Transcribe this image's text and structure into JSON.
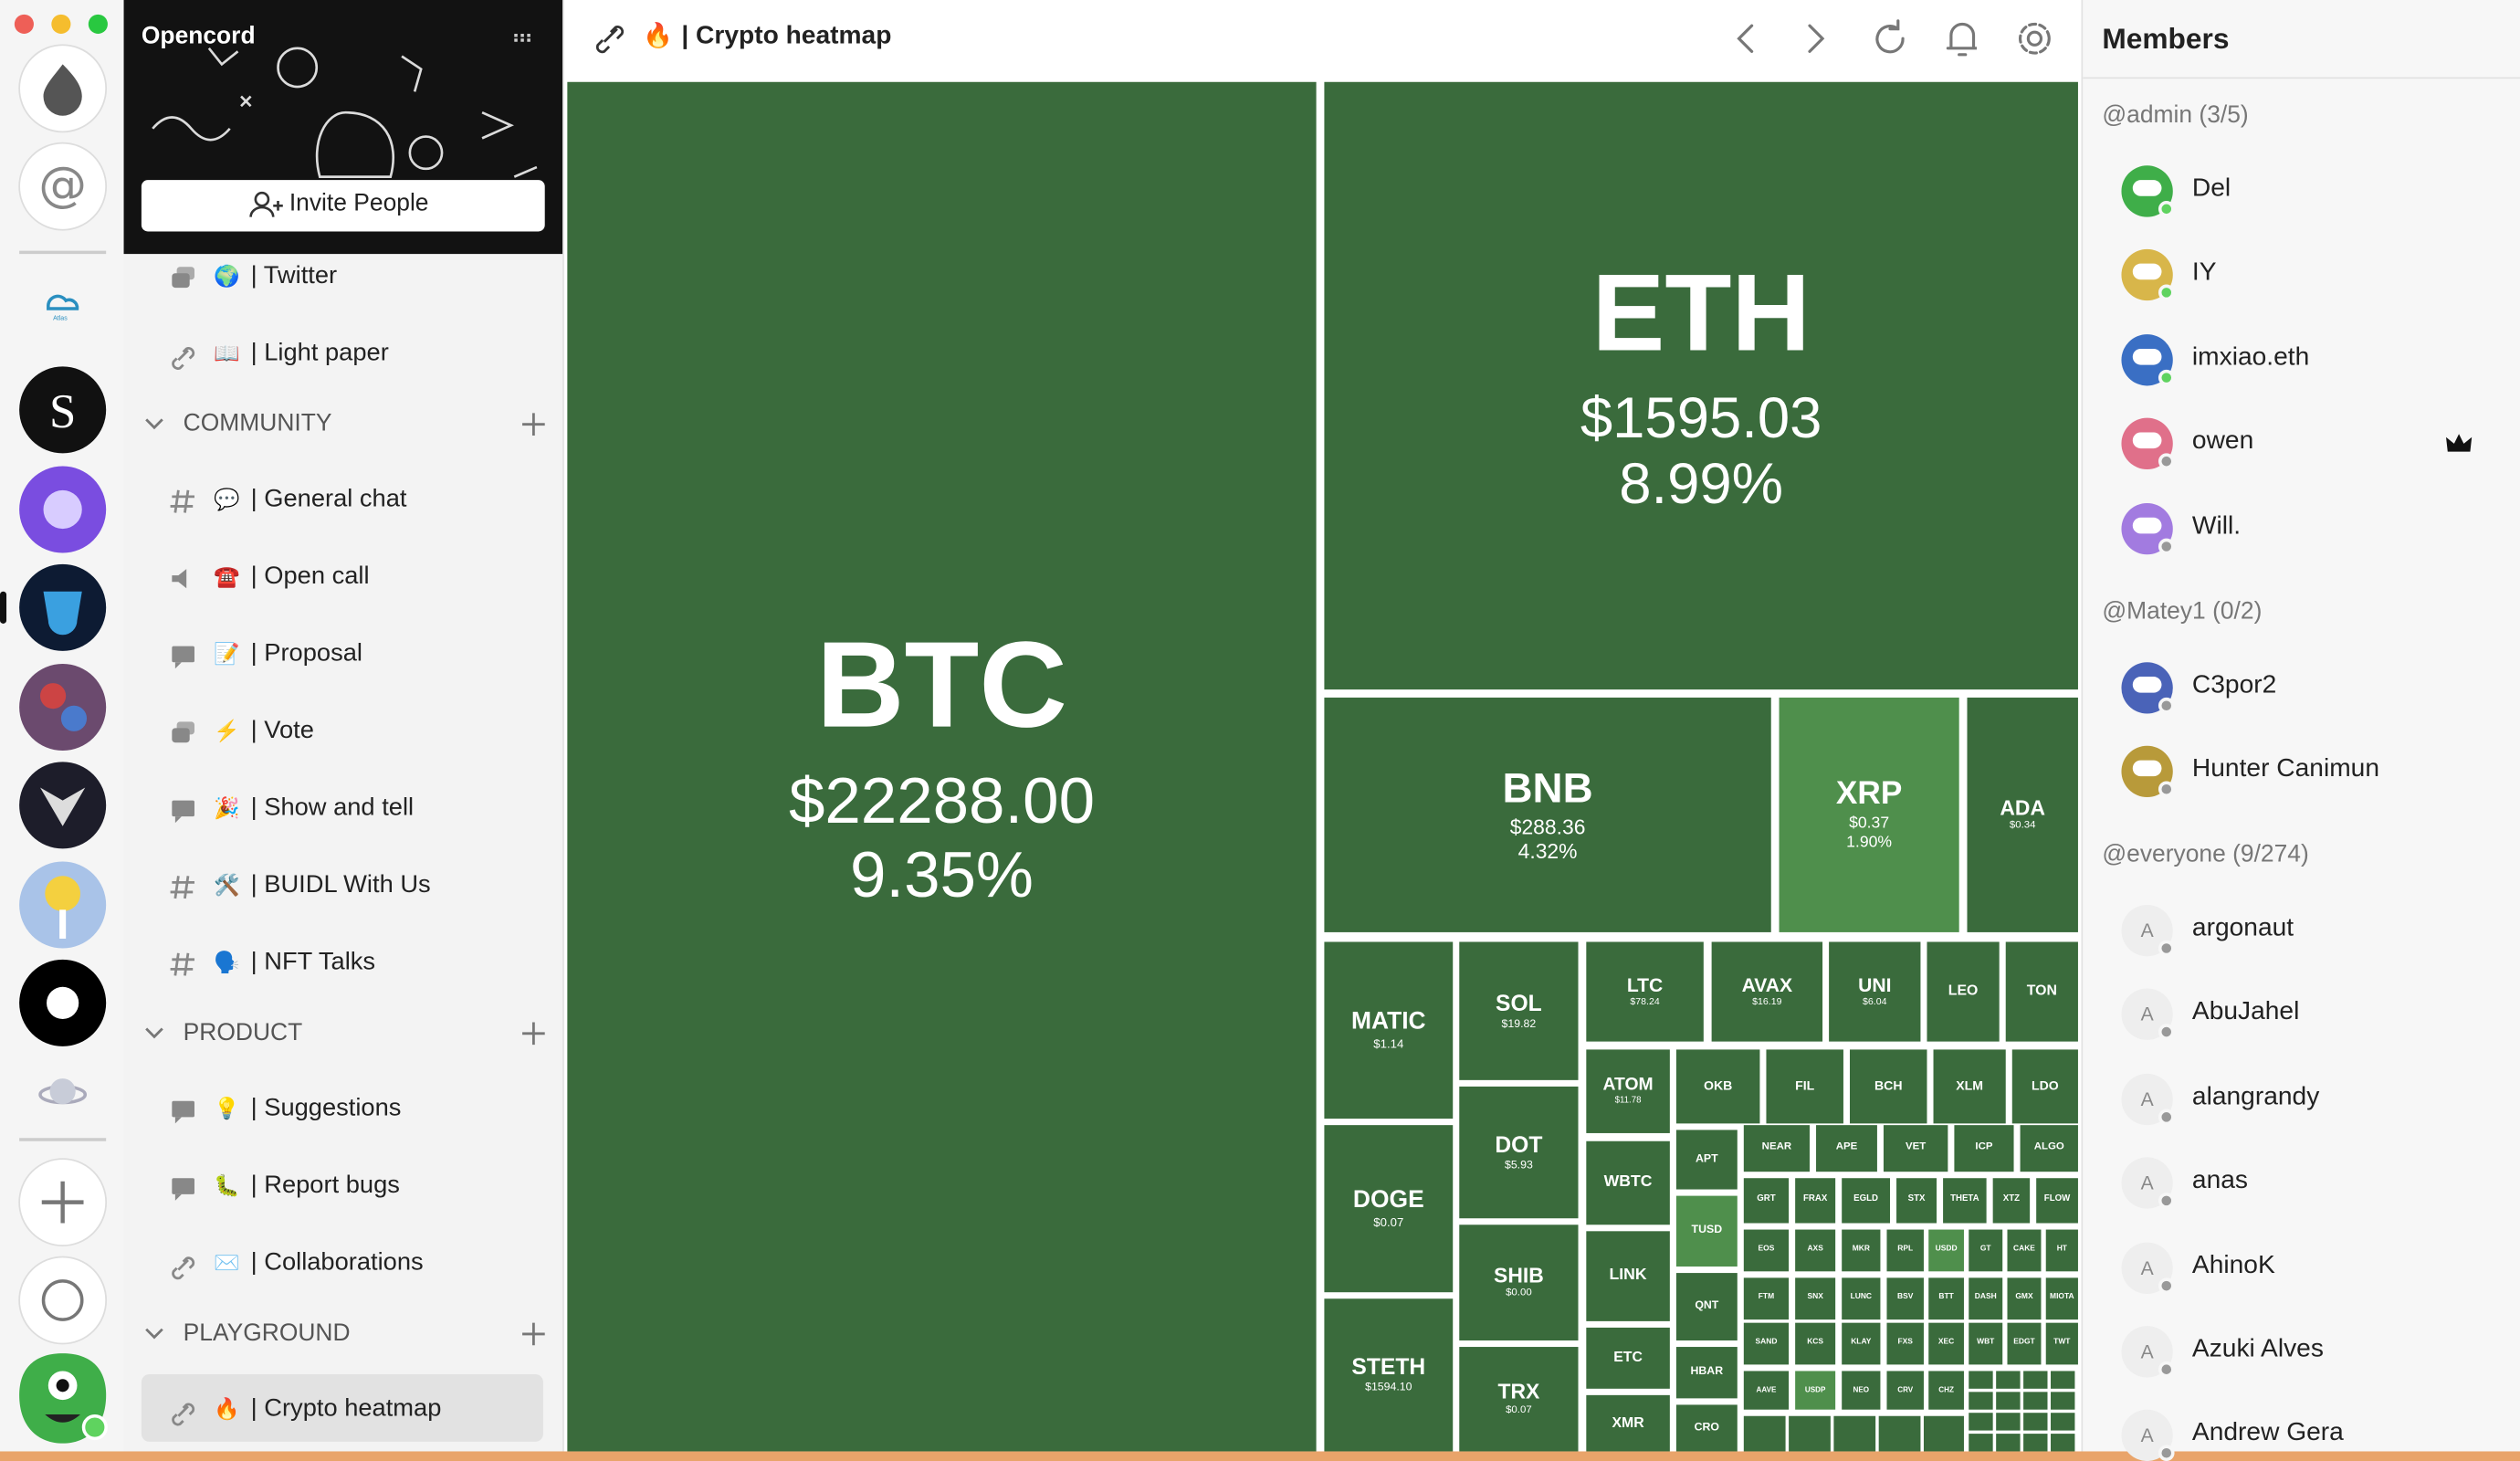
{
  "window": {
    "server_name": "Opencord",
    "invite": "Invite People",
    "rail_label": "Atlas"
  },
  "sidebar": {
    "sections": [
      {
        "items": [
          {
            "icon": "thread",
            "emoji": "🌍",
            "label": "| Twitter"
          },
          {
            "icon": "link",
            "emoji": "📖",
            "label": "| Light paper"
          }
        ]
      },
      {
        "title": "COMMUNITY",
        "items": [
          {
            "icon": "hash",
            "emoji": "💬",
            "label": "| General chat"
          },
          {
            "icon": "speaker",
            "emoji": "☎️",
            "label": "| Open call"
          },
          {
            "icon": "chat",
            "emoji": "📝",
            "label": "| Proposal"
          },
          {
            "icon": "thread",
            "emoji": "⚡",
            "label": "| Vote"
          },
          {
            "icon": "chat",
            "emoji": "🎉",
            "label": "| Show and tell"
          },
          {
            "icon": "hash",
            "emoji": "🛠️",
            "label": "| BUIDL With Us"
          },
          {
            "icon": "hash",
            "emoji": "🗣️",
            "label": "| NFT Talks"
          }
        ]
      },
      {
        "title": "PRODUCT",
        "items": [
          {
            "icon": "chat",
            "emoji": "💡",
            "label": "| Suggestions"
          },
          {
            "icon": "chat",
            "emoji": "🐛",
            "label": "| Report bugs"
          },
          {
            "icon": "link",
            "emoji": "✉️",
            "label": "| Collaborations"
          }
        ]
      },
      {
        "title": "PLAYGROUND",
        "items": [
          {
            "icon": "link",
            "emoji": "🔥",
            "label": "| Crypto heatmap",
            "selected": true
          }
        ]
      }
    ]
  },
  "header": {
    "emoji": "🔥",
    "title": "| Crypto heatmap"
  },
  "heatmap": {
    "tiles": [
      {
        "symbol": "BTC",
        "price": "$22288.00",
        "change": "9.35%"
      },
      {
        "symbol": "ETH",
        "price": "$1595.03",
        "change": "8.99%"
      },
      {
        "symbol": "BNB",
        "price": "$288.36",
        "change": "4.32%"
      },
      {
        "symbol": "XRP",
        "price": "$0.37",
        "change": "1.90%"
      },
      {
        "symbol": "ADA",
        "price": "$0.34"
      },
      {
        "symbol": "MATIC",
        "price": "$1.14"
      },
      {
        "symbol": "DOGE",
        "price": "$0.07"
      },
      {
        "symbol": "STETH",
        "price": "$1594.10"
      },
      {
        "symbol": "SOL",
        "price": "$19.82"
      },
      {
        "symbol": "DOT",
        "price": "$5.93"
      },
      {
        "symbol": "SHIB",
        "price": "$0.00"
      },
      {
        "symbol": "TRX",
        "price": "$0.07"
      },
      {
        "symbol": "LTC",
        "price": "$78.24"
      },
      {
        "symbol": "AVAX",
        "price": "$16.19"
      },
      {
        "symbol": "UNI",
        "price": "$6.04"
      },
      {
        "symbol": "LEO"
      },
      {
        "symbol": "TON"
      },
      {
        "symbol": "ATOM",
        "price": "$11.78"
      },
      {
        "symbol": "WBTC"
      },
      {
        "symbol": "LINK"
      },
      {
        "symbol": "ETC"
      },
      {
        "symbol": "XMR"
      },
      {
        "symbol": "OKB"
      },
      {
        "symbol": "FIL"
      },
      {
        "symbol": "BCH"
      },
      {
        "symbol": "XLM"
      },
      {
        "symbol": "LDO"
      },
      {
        "symbol": "APT"
      },
      {
        "symbol": "TUSD"
      },
      {
        "symbol": "QNT"
      },
      {
        "symbol": "HBAR"
      },
      {
        "symbol": "CRO"
      },
      {
        "symbol": "NEAR"
      },
      {
        "symbol": "APE"
      },
      {
        "symbol": "VET"
      },
      {
        "symbol": "ICP"
      },
      {
        "symbol": "ALGO"
      },
      {
        "symbol": "GRT"
      },
      {
        "symbol": "FRAX"
      },
      {
        "symbol": "EGLD"
      },
      {
        "symbol": "STX"
      },
      {
        "symbol": "THETA"
      },
      {
        "symbol": "XTZ"
      },
      {
        "symbol": "FLOW"
      },
      {
        "symbol": "EOS"
      },
      {
        "symbol": "AXS"
      },
      {
        "symbol": "MKR"
      },
      {
        "symbol": "RPL"
      },
      {
        "symbol": "USDD"
      },
      {
        "symbol": "GT"
      },
      {
        "symbol": "CAKE"
      },
      {
        "symbol": "HT"
      },
      {
        "symbol": "FTM"
      },
      {
        "symbol": "SNX"
      },
      {
        "symbol": "LUNC"
      },
      {
        "symbol": "BSV"
      },
      {
        "symbol": "BTT"
      },
      {
        "symbol": "DASH"
      },
      {
        "symbol": "GMX"
      },
      {
        "symbol": "MIOTA"
      },
      {
        "symbol": "SAND"
      },
      {
        "symbol": "KCS"
      },
      {
        "symbol": "KLAY"
      },
      {
        "symbol": "FXS"
      },
      {
        "symbol": "XEC"
      },
      {
        "symbol": "WBT"
      },
      {
        "symbol": "EDGT"
      },
      {
        "symbol": "TWT"
      },
      {
        "symbol": "AAVE"
      },
      {
        "symbol": "USDP"
      },
      {
        "symbol": "NEO"
      },
      {
        "symbol": "CRV"
      },
      {
        "symbol": "CHZ"
      }
    ]
  },
  "members": {
    "title": "Members",
    "groups": [
      {
        "label": "@admin (3/5)",
        "members": [
          {
            "name": "Del",
            "color": "#3fae49",
            "online": true
          },
          {
            "name": "IY",
            "color": "#d8b64a",
            "online": true
          },
          {
            "name": "imxiao.eth",
            "color": "#3a6fc4",
            "online": true
          },
          {
            "name": "owen",
            "color": "#e0708a",
            "online": false,
            "crown": true
          },
          {
            "name": "Will.",
            "color": "#a27be0",
            "online": false
          }
        ]
      },
      {
        "label": "@Matey1 (0/2)",
        "members": [
          {
            "name": "C3por2",
            "color": "#4a63b8",
            "online": false
          },
          {
            "name": "Hunter Canimun",
            "color": "#b89a3a",
            "online": false
          }
        ]
      },
      {
        "label": "@everyone (9/274)",
        "members": [
          {
            "name": "argonaut",
            "letter": "A"
          },
          {
            "name": "AbuJahel",
            "letter": "A"
          },
          {
            "name": "alangrandy",
            "letter": "A"
          },
          {
            "name": "anas",
            "letter": "A"
          },
          {
            "name": "AhinoK",
            "letter": "A"
          },
          {
            "name": "Azuki Alves",
            "letter": "A"
          },
          {
            "name": "Andrew Gera",
            "letter": "A"
          }
        ]
      }
    ]
  }
}
